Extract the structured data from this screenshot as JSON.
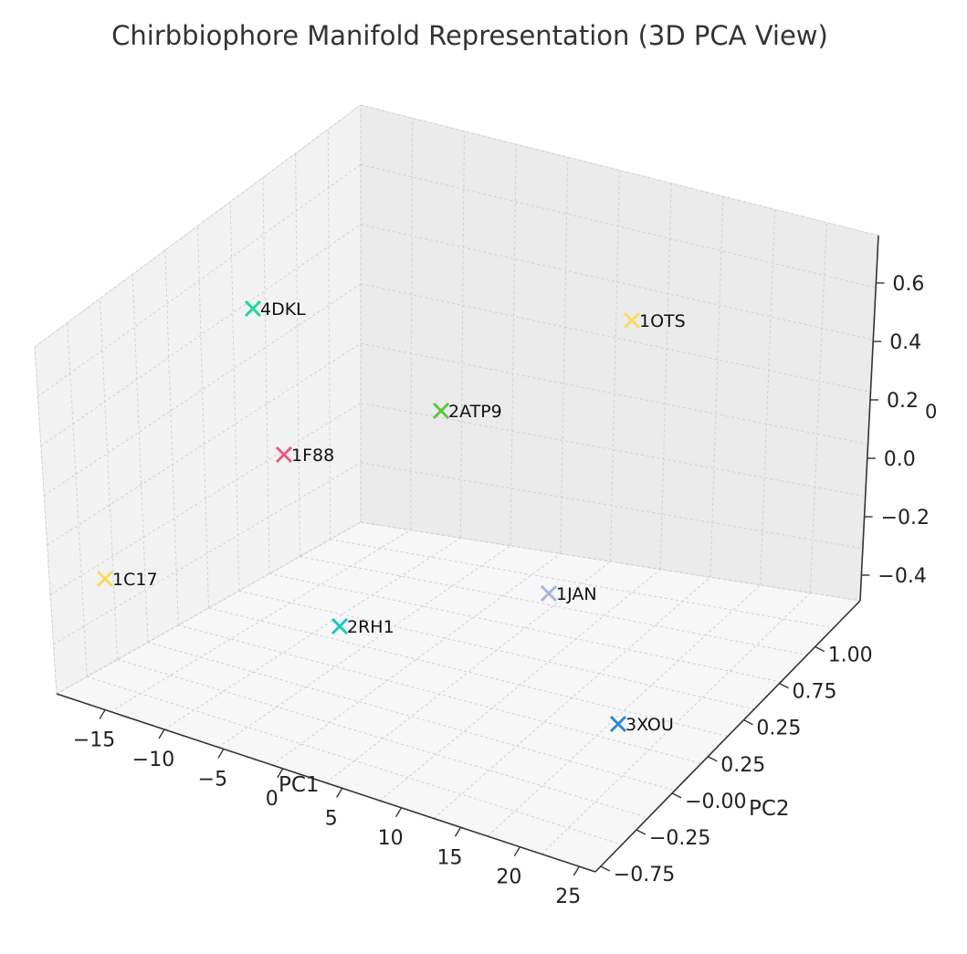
{
  "chart_data": {
    "type": "scatter3d",
    "title": "Chirbbiophore Manifold Representation (3D PCA View)",
    "xlabel": "PC1",
    "ylabel": "PC2",
    "zlabel": "0",
    "x_ticks": [
      "−15",
      "−10",
      "−5",
      "0",
      "5",
      "10",
      "15",
      "20",
      "25"
    ],
    "y_ticks": [
      "−0.75",
      "−0.25",
      "−0.00",
      "0.25",
      "0.25",
      "0.75",
      "1.00"
    ],
    "z_ticks": [
      "−0.4",
      "−0.2",
      "0.0",
      "0.2",
      "0.4",
      "0.6"
    ],
    "grid": true,
    "marker": "x",
    "points": [
      {
        "label": "4DKL",
        "color": "#1ed6a0"
      },
      {
        "label": "1OTS",
        "color": "#f7dc5a"
      },
      {
        "label": "2ATP9",
        "color": "#5cc53c"
      },
      {
        "label": "1F88",
        "color": "#e35b83"
      },
      {
        "label": "1C17",
        "color": "#f7dc5a"
      },
      {
        "label": "1JAN",
        "color": "#a9b4dc"
      },
      {
        "label": "2RH1",
        "color": "#1ac8c0"
      },
      {
        "label": "3XOU",
        "color": "#2f86d3"
      }
    ]
  }
}
